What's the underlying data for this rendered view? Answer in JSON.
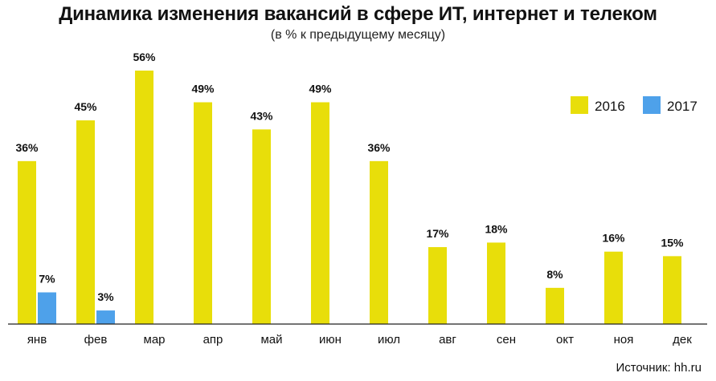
{
  "title": "Динамика изменения вакансий в сфере ИТ, интернет и телеком",
  "subtitle": "(в % к предыдущему месяцу)",
  "source": "Источник: hh.ru",
  "chart_data": {
    "type": "bar",
    "categories": [
      "янв",
      "фев",
      "мар",
      "апр",
      "май",
      "июн",
      "июл",
      "авг",
      "сен",
      "окт",
      "ноя",
      "дек"
    ],
    "series": [
      {
        "name": "2016",
        "color": "#e8de0a",
        "values": [
          36,
          45,
          56,
          49,
          43,
          49,
          36,
          17,
          18,
          8,
          16,
          15
        ],
        "labels": [
          "36%",
          "45%",
          "56%",
          "49%",
          "43%",
          "49%",
          "36%",
          "17%",
          "18%",
          "8%",
          "16%",
          "15%"
        ]
      },
      {
        "name": "2017",
        "color": "#4ea1ea",
        "values": [
          7,
          3,
          null,
          null,
          null,
          null,
          null,
          null,
          null,
          null,
          null,
          null
        ],
        "labels": [
          "7%",
          "3%",
          "",
          "",
          "",
          "",
          "",
          "",
          "",
          "",
          "",
          ""
        ]
      }
    ],
    "ylim": [
      0,
      58
    ],
    "grid": false,
    "legend": "top-right"
  }
}
